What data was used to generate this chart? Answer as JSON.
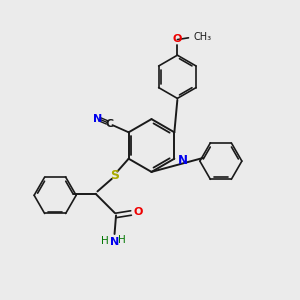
{
  "background_color": "#ebebeb",
  "bond_color": "#1a1a1a",
  "atom_colors": {
    "N": "#0000ee",
    "O": "#ee0000",
    "S": "#aaaa00",
    "C": "#1a1a1a",
    "H": "#007700"
  },
  "figsize": [
    3.0,
    3.0
  ],
  "dpi": 100,
  "xlim": [
    0,
    10
  ],
  "ylim": [
    0,
    10
  ]
}
